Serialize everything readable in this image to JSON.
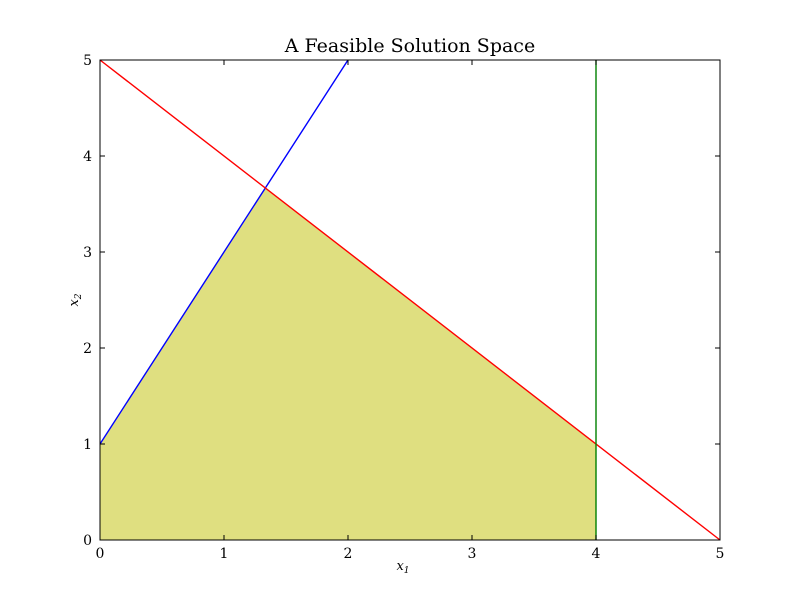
{
  "chart_data": {
    "type": "line",
    "title": "A Feasible Solution Space",
    "xlabel": "x",
    "xlabel_sub": "1",
    "ylabel": "x",
    "ylabel_sub": "2",
    "xlim": [
      0,
      5
    ],
    "ylim": [
      0,
      5
    ],
    "xticks": [
      "0",
      "1",
      "2",
      "3",
      "4",
      "5"
    ],
    "yticks": [
      "0",
      "1",
      "2",
      "3",
      "4",
      "5"
    ],
    "grid": false,
    "series": [
      {
        "color": "#0000ff",
        "points": [
          [
            0,
            1
          ],
          [
            2,
            5
          ]
        ]
      },
      {
        "color": "#ff0000",
        "points": [
          [
            0,
            5
          ],
          [
            5,
            0
          ]
        ]
      },
      {
        "color": "#008000",
        "points": [
          [
            4,
            0
          ],
          [
            4,
            5
          ]
        ]
      }
    ],
    "feasible_region": {
      "color": "#dfdf80",
      "vertices": [
        [
          0,
          0
        ],
        [
          0,
          1
        ],
        [
          1.333,
          3.667
        ],
        [
          4,
          1
        ],
        [
          4,
          0
        ]
      ]
    }
  }
}
